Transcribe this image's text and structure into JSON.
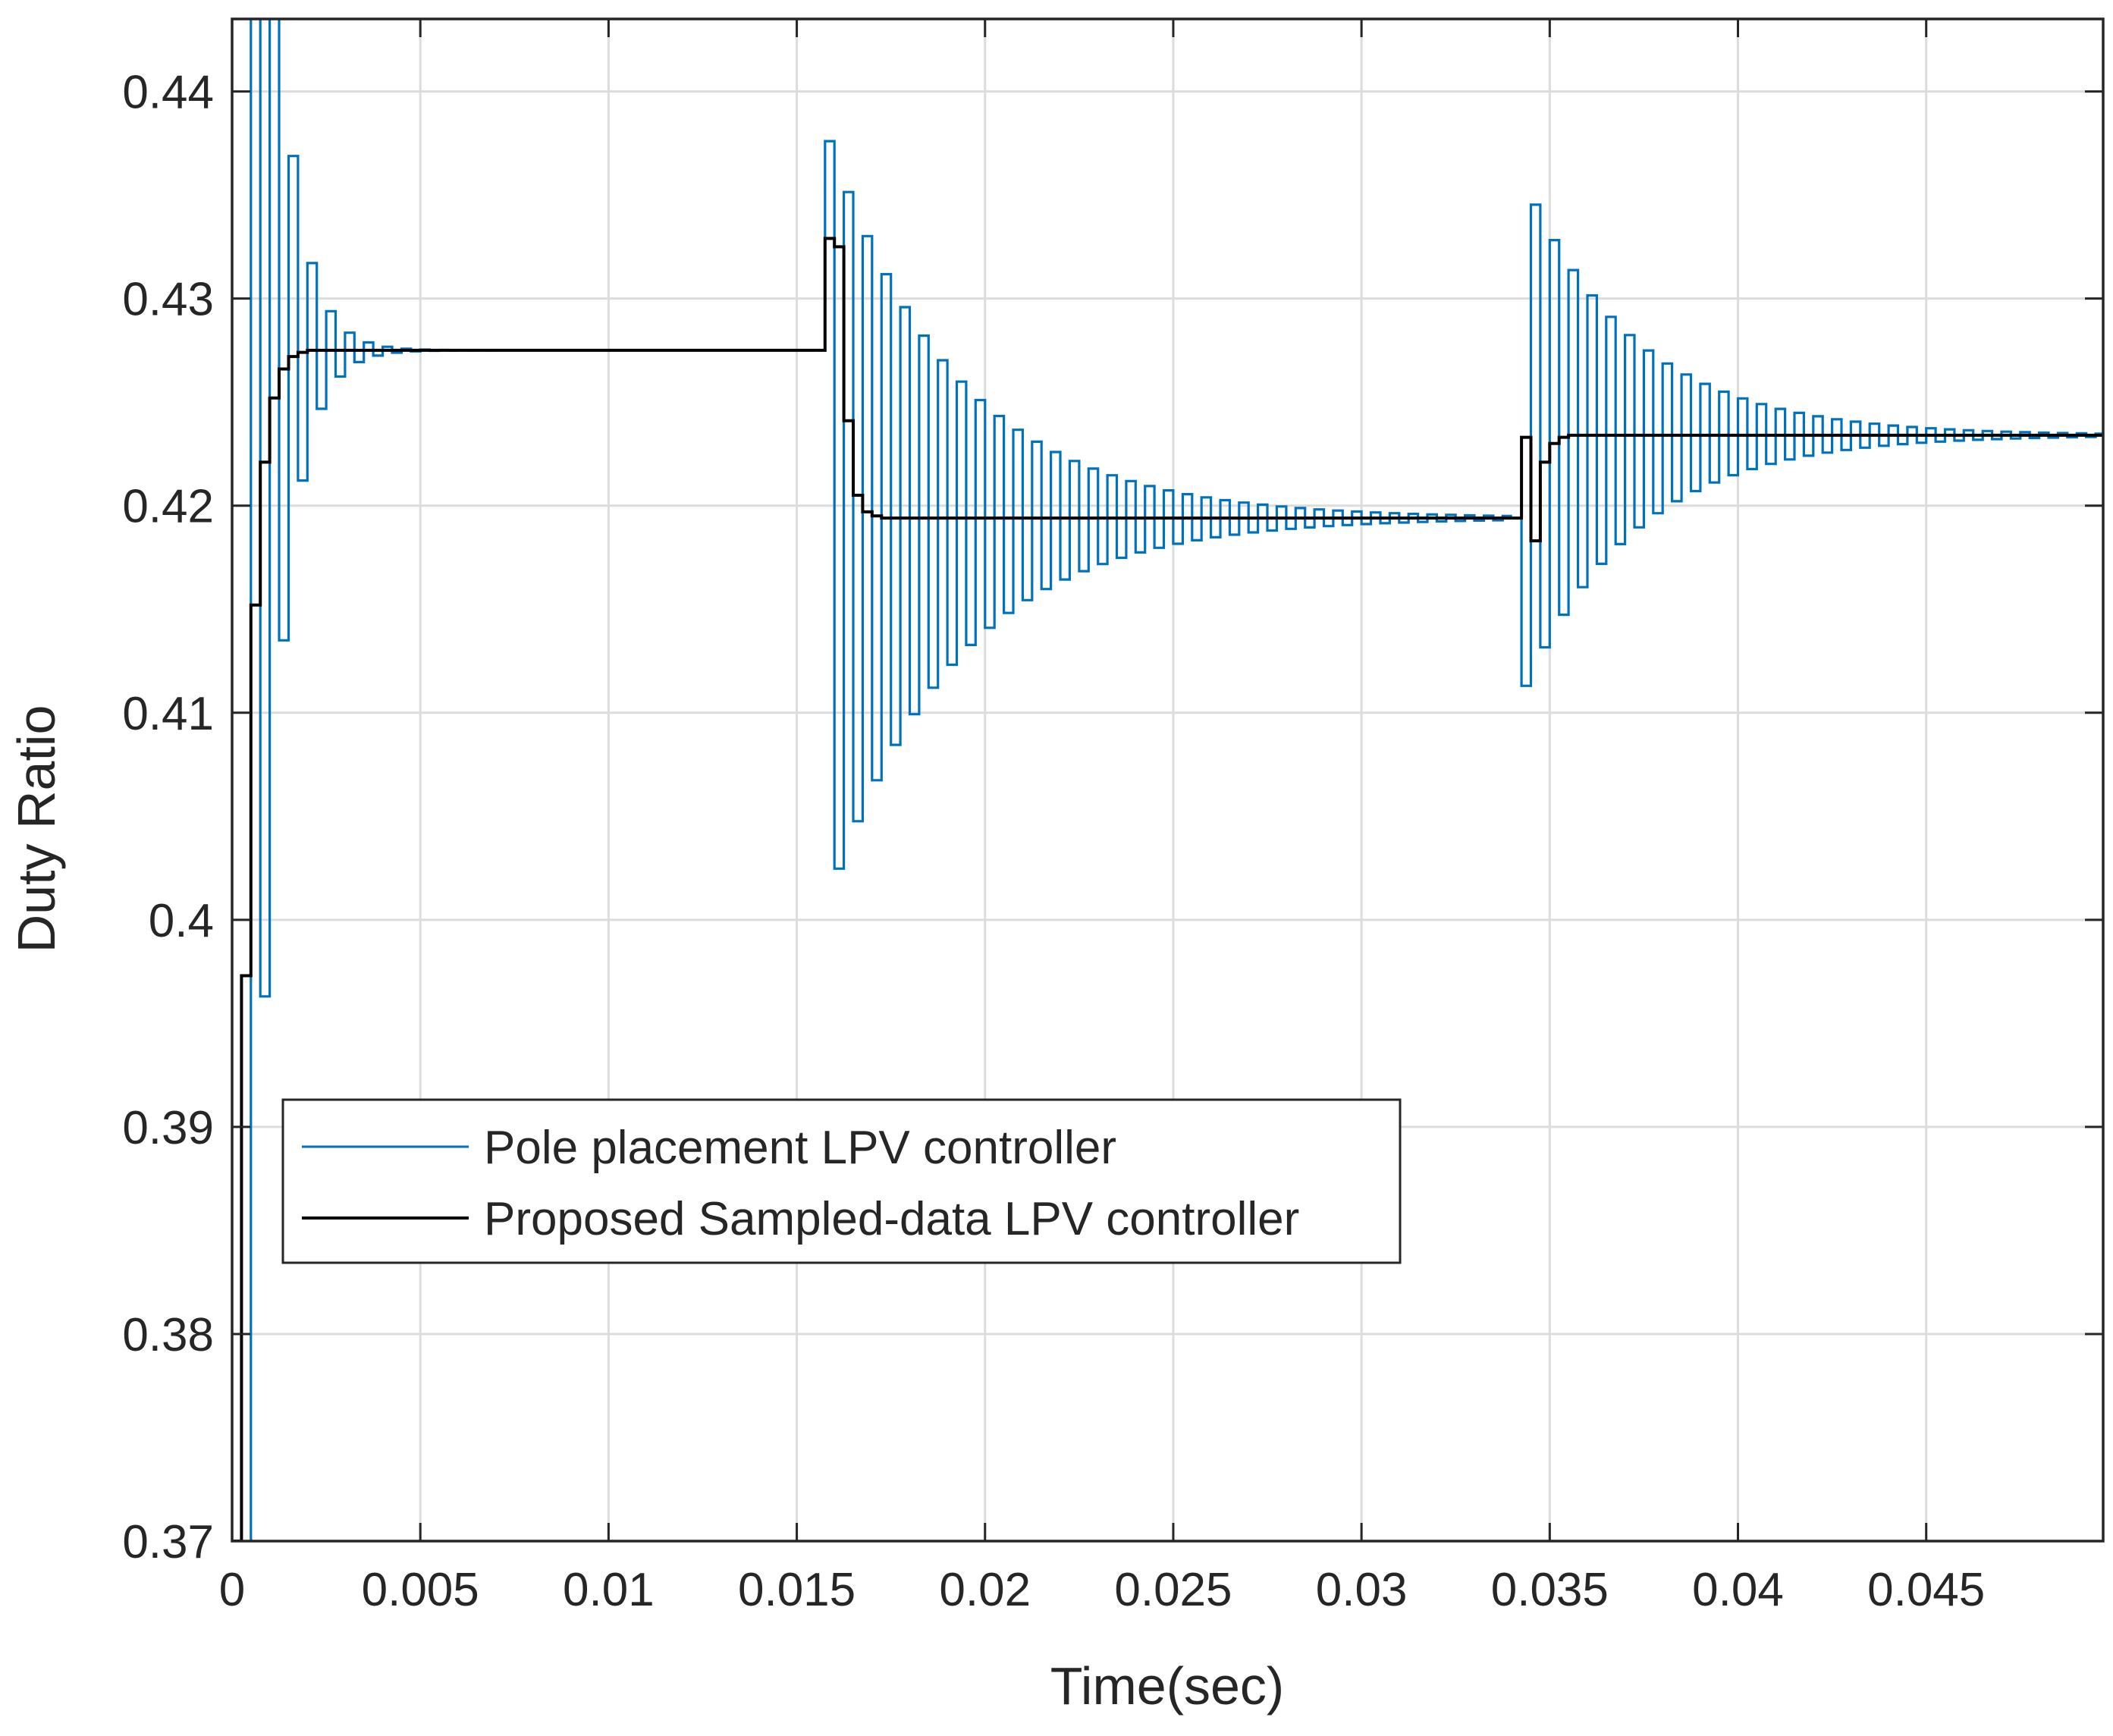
{
  "chart_data": {
    "type": "line",
    "title": "",
    "xlabel": "Time(sec)",
    "ylabel": "Duty Ratio",
    "xlim": [
      0,
      0.0497
    ],
    "ylim": [
      0.37,
      0.4435
    ],
    "grid": true,
    "xticks": [
      0,
      0.005,
      0.01,
      0.015,
      0.02,
      0.025,
      0.03,
      0.035,
      0.04,
      0.045
    ],
    "xtick_labels": [
      "0",
      "0.005",
      "0.01",
      "0.015",
      "0.02",
      "0.025",
      "0.03",
      "0.035",
      "0.04",
      "0.045"
    ],
    "yticks": [
      0.37,
      0.38,
      0.39,
      0.4,
      0.41,
      0.42,
      0.43,
      0.44
    ],
    "ytick_labels": [
      "0.37",
      "0.38",
      "0.39",
      "0.4",
      "0.41",
      "0.42",
      "0.43",
      "0.44"
    ],
    "legend_position": "lower-left",
    "sample_period": 0.00025,
    "series": [
      {
        "name": "Pole placement LPV controller",
        "color": "#0072BD",
        "segments": [
          {
            "t_start": 0.0,
            "t_end": 0.0155,
            "initial": 0.37,
            "final": 0.4275,
            "overshoot": 0.0695,
            "decay": 0.67
          },
          {
            "t_start": 0.0155,
            "t_end": 0.034,
            "initial": 0.4275,
            "final": 0.4194,
            "overshoot": 0.0182,
            "decay": 0.93
          },
          {
            "t_start": 0.034,
            "t_end": 0.0497,
            "initial": 0.4194,
            "final": 0.4234,
            "overshoot": 0.0121,
            "decay": 0.92
          }
        ]
      },
      {
        "name": "Proposed Sampled-data LPV controller",
        "color": "#000000",
        "segments": [
          {
            "t_start": 0.0,
            "t_end": 0.0155,
            "initial": 0.37,
            "final": 0.4275,
            "steps": [
              0.37,
              0.3973,
              0.4152,
              0.4221,
              0.4252,
              0.4266,
              0.4272,
              0.4274,
              0.4275
            ]
          },
          {
            "t_start": 0.0155,
            "t_end": 0.034,
            "initial": 0.4275,
            "final": 0.4194,
            "steps": [
              0.4275,
              0.4329,
              0.4325,
              0.4241,
              0.4205,
              0.4197,
              0.4195,
              0.4194
            ]
          },
          {
            "t_start": 0.034,
            "t_end": 0.0497,
            "initial": 0.4194,
            "final": 0.4234,
            "steps": [
              0.4194,
              0.4233,
              0.4183,
              0.4221,
              0.423,
              0.4233,
              0.4234
            ]
          }
        ]
      }
    ]
  }
}
